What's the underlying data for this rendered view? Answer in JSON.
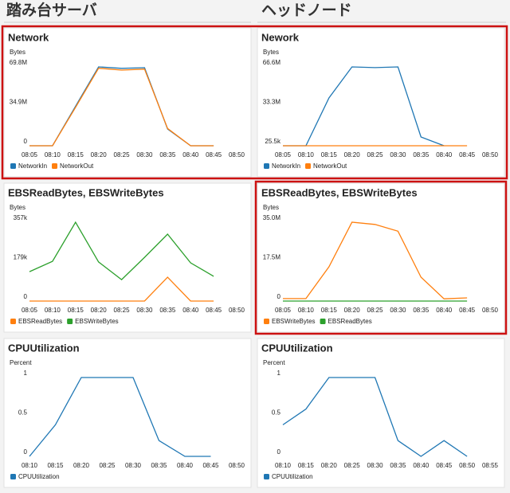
{
  "columns": [
    "踏み台サーバ",
    "ヘッドノード"
  ],
  "chart_data": [
    {
      "type": "line",
      "title": "Network",
      "y_label": "Bytes",
      "categories": [
        "08:05",
        "08:10",
        "08:15",
        "08:20",
        "08:25",
        "08:30",
        "08:35",
        "08:40",
        "08:45",
        "08:50"
      ],
      "ylim": [
        0,
        69800000
      ],
      "yticks": [
        0,
        {
          "value": 34900000,
          "label": "34.9M"
        },
        {
          "value": 69800000,
          "label": "69.8M"
        }
      ],
      "series": [
        {
          "name": "NetworkIn",
          "color": "#1f77b4",
          "values": [
            0,
            0,
            35000000,
            69800000,
            68500000,
            69100000,
            14800000,
            0,
            0,
            null
          ]
        },
        {
          "name": "NetworkOut",
          "color": "#ff7f0e",
          "values": [
            0,
            0,
            34000000,
            68600000,
            67000000,
            67800000,
            15300000,
            0,
            0,
            null
          ]
        }
      ]
    },
    {
      "type": "line",
      "title": "Nework",
      "y_label": "Bytes",
      "categories": [
        "08:05",
        "08:10",
        "08:15",
        "08:20",
        "08:25",
        "08:30",
        "08:35",
        "08:40",
        "08:45",
        "08:50"
      ],
      "ylim": [
        25500,
        66600000
      ],
      "yticks": [
        {
          "value": 25500,
          "label": "25.5k"
        },
        {
          "value": 33300000,
          "label": "33.3M"
        },
        {
          "value": 66600000,
          "label": "66.6M"
        }
      ],
      "series": [
        {
          "name": "NetworkIn",
          "color": "#1f77b4",
          "values": [
            30000,
            30000,
            40400000,
            66600000,
            66000000,
            66600000,
            7400000,
            30000,
            null,
            null
          ]
        },
        {
          "name": "NetworkOut",
          "color": "#ff7f0e",
          "values": [
            25500,
            25500,
            25500,
            25500,
            25500,
            25500,
            25500,
            25500,
            25500,
            null
          ]
        }
      ]
    },
    {
      "type": "line",
      "title": "EBSReadBytes, EBSWriteBytes",
      "y_label": "Bytes",
      "categories": [
        "08:05",
        "08:10",
        "08:15",
        "08:20",
        "08:25",
        "08:30",
        "08:35",
        "08:40",
        "08:45",
        "08:50"
      ],
      "ylim": [
        0,
        357000
      ],
      "yticks": [
        0,
        {
          "value": 179000,
          "label": "179k"
        },
        {
          "value": 357000,
          "label": "357k"
        }
      ],
      "series": [
        {
          "name": "EBSReadBytes",
          "color": "#ff7f0e",
          "values": [
            0,
            0,
            0,
            0,
            0,
            0,
            108000,
            0,
            0,
            null
          ]
        },
        {
          "name": "EBSWriteBytes",
          "color": "#2ca02c",
          "values": [
            133000,
            180000,
            357000,
            177000,
            97000,
            198000,
            303000,
            173000,
            112000,
            null
          ]
        }
      ]
    },
    {
      "type": "line",
      "title": "EBSReadBytes, EBSWriteBytes",
      "y_label": "Bytes",
      "categories": [
        "08:05",
        "08:10",
        "08:15",
        "08:20",
        "08:25",
        "08:30",
        "08:35",
        "08:40",
        "08:45",
        "08:50"
      ],
      "ylim": [
        0,
        35000000
      ],
      "yticks": [
        0,
        {
          "value": 17500000,
          "label": "17.5M"
        },
        {
          "value": 35000000,
          "label": "35.0M"
        }
      ],
      "series": [
        {
          "name": "EBSWriteBytes",
          "color": "#ff7f0e",
          "values": [
            1100000,
            1100000,
            15200000,
            35000000,
            34000000,
            31000000,
            10600000,
            1000000,
            1400000,
            null
          ]
        },
        {
          "name": "EBSReadBytes",
          "color": "#2ca02c",
          "values": [
            0,
            0,
            0,
            0,
            0,
            0,
            0,
            0,
            0,
            null
          ]
        }
      ]
    },
    {
      "type": "line",
      "title": "CPUUtilization",
      "y_label": "Percent",
      "categories": [
        "08:10",
        "08:15",
        "08:20",
        "08:25",
        "08:30",
        "08:35",
        "08:40",
        "08:45",
        "08:50"
      ],
      "ylim": [
        0,
        1
      ],
      "yticks": [
        0,
        0.5,
        1
      ],
      "series": [
        {
          "name": "CPUUtilization",
          "color": "#1f77b4",
          "values": [
            0,
            0.4,
            1,
            1,
            1,
            0.2,
            0,
            0,
            null
          ]
        }
      ]
    },
    {
      "type": "line",
      "title": "CPUUtilization",
      "y_label": "Percent",
      "categories": [
        "08:10",
        "08:15",
        "08:20",
        "08:25",
        "08:30",
        "08:35",
        "08:40",
        "08:45",
        "08:50",
        "08:55"
      ],
      "ylim": [
        0,
        1
      ],
      "yticks": [
        0,
        0.5,
        1
      ],
      "series": [
        {
          "name": "CPUUtilization",
          "color": "#1f77b4",
          "values": [
            0.4,
            0.6,
            1,
            1,
            1,
            0.2,
            0,
            0.2,
            0,
            null
          ]
        }
      ]
    }
  ]
}
